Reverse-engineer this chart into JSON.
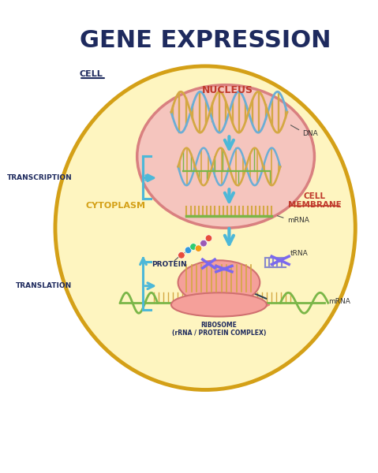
{
  "title": "GENE EXPRESSION",
  "title_color": "#1e2a5e",
  "title_fontsize": 22,
  "bg_color": "#ffffff",
  "cell_fill": "#fef5c0",
  "cell_border": "#d4a017",
  "nucleus_fill": "#f5c5be",
  "nucleus_border": "#d98080",
  "label_cell": "CELL",
  "label_nucleus": "NUCLEUS",
  "label_nucleus_color": "#c0392b",
  "label_cytoplasm": "CYTOPLASM",
  "label_cytoplasm_color": "#d4a017",
  "label_cell_membrane": "CELL\nMEMBRANE",
  "label_cell_membrane_color": "#c0392b",
  "label_transcription": "TRANSCRIPTION",
  "label_translation": "TRANSLATION",
  "label_dna": "DNA",
  "label_mrna": "mRNA",
  "label_protein": "PROTEIN",
  "label_trna": "tRNA",
  "label_ribosome": "RIBOSOME\n(rRNA / PROTEIN COMPLEX)",
  "arrow_color": "#4db8d8",
  "dna_color1": "#6baed6",
  "dna_color2": "#d4a843",
  "dna_rung_color": "#d4a843",
  "mrna_color": "#7ab648",
  "mrna_rung_color": "#d4a843",
  "bracket_color": "#4db8d8",
  "ribosome_fill": "#f5a09a",
  "protein_colors": [
    "#e74c3c",
    "#3498db",
    "#2ecc71",
    "#f39c12",
    "#9b59b6"
  ],
  "dark_arrow_color": "#2c3e50"
}
